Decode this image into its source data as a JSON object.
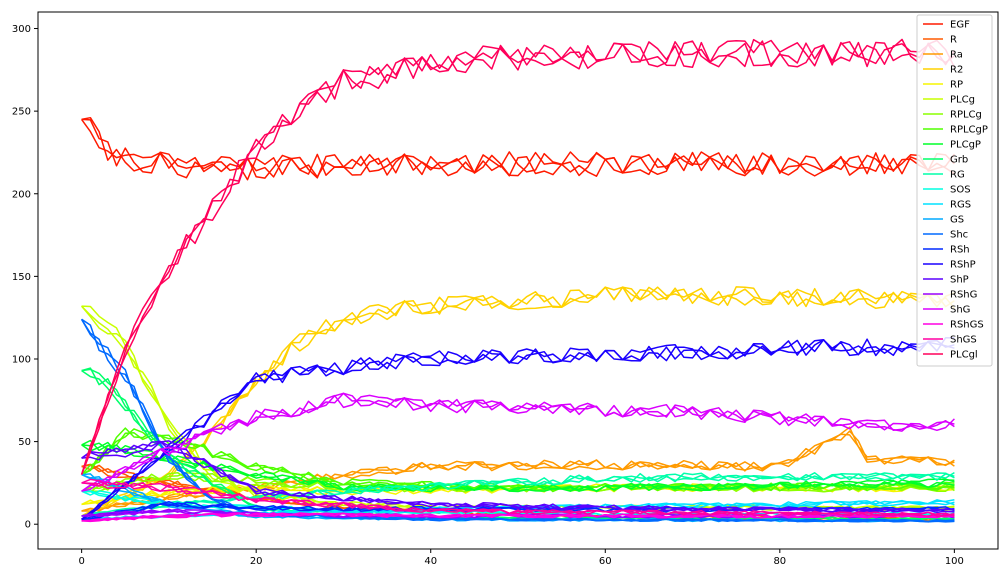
{
  "chart_data": {
    "type": "line",
    "title": "",
    "xlabel": "",
    "ylabel": "",
    "xlim": [
      -5,
      105
    ],
    "ylim": [
      -15,
      310
    ],
    "x_ticks": [
      0,
      20,
      40,
      60,
      80,
      100
    ],
    "y_ticks": [
      0,
      50,
      100,
      150,
      200,
      250,
      300
    ],
    "x_tick_labels": [
      "0",
      "20",
      "40",
      "60",
      "80",
      "100"
    ],
    "y_tick_labels": [
      "0",
      "50",
      "100",
      "150",
      "200",
      "250",
      "300"
    ],
    "grid": false,
    "legend_position": "top-right",
    "noise": 0.5,
    "series": [
      {
        "name": "EGF",
        "color": "#ff1a00",
        "x": [
          0,
          3,
          6,
          10,
          15,
          20,
          30,
          40,
          60,
          80,
          100
        ],
        "y": [
          245,
          225,
          221,
          217,
          215,
          216,
          217,
          218,
          218,
          218,
          218
        ]
      },
      {
        "name": "R",
        "color": "#ff5a00",
        "x": [
          0,
          5,
          10,
          20,
          30,
          50,
          70,
          100
        ],
        "y": [
          35,
          30,
          25,
          16,
          10,
          6,
          4,
          3
        ]
      },
      {
        "name": "Ra",
        "color": "#ff9a00",
        "x": [
          0,
          5,
          10,
          20,
          30,
          40,
          60,
          80,
          88,
          90,
          100
        ],
        "y": [
          8,
          12,
          16,
          22,
          30,
          35,
          36,
          35,
          55,
          40,
          37
        ]
      },
      {
        "name": "R2",
        "color": "#ffd200",
        "x": [
          0,
          10,
          15,
          20,
          25,
          30,
          40,
          60,
          80,
          100
        ],
        "y": [
          5,
          30,
          55,
          85,
          110,
          125,
          132,
          138,
          138,
          135
        ]
      },
      {
        "name": "RP",
        "color": "#f5f500",
        "x": [
          0,
          10,
          20,
          30,
          60,
          100
        ],
        "y": [
          12,
          20,
          22,
          20,
          22,
          22
        ]
      },
      {
        "name": "PLCg",
        "color": "#c8ff00",
        "x": [
          0,
          5,
          10,
          15,
          20,
          30,
          50,
          100
        ],
        "y": [
          132,
          110,
          60,
          30,
          18,
          12,
          10,
          10
        ]
      },
      {
        "name": "RPLCg",
        "color": "#8cff00",
        "x": [
          0,
          10,
          20,
          30,
          60,
          100
        ],
        "y": [
          20,
          30,
          26,
          22,
          22,
          22
        ]
      },
      {
        "name": "RPLCgP",
        "color": "#50ff00",
        "x": [
          0,
          5,
          10,
          20,
          30,
          50,
          100
        ],
        "y": [
          30,
          55,
          52,
          35,
          25,
          22,
          23
        ]
      },
      {
        "name": "PLCgP",
        "color": "#00ff2a",
        "x": [
          0,
          5,
          10,
          20,
          30,
          60,
          100
        ],
        "y": [
          48,
          45,
          40,
          30,
          22,
          22,
          25
        ]
      },
      {
        "name": "Grb",
        "color": "#00ff6a",
        "x": [
          0,
          3,
          10,
          20,
          40,
          100
        ],
        "y": [
          93,
          85,
          40,
          10,
          4,
          3
        ]
      },
      {
        "name": "RG",
        "color": "#00ffaa",
        "x": [
          0,
          10,
          30,
          60,
          100
        ],
        "y": [
          5,
          12,
          20,
          28,
          29
        ]
      },
      {
        "name": "SOS",
        "color": "#00ffe2",
        "x": [
          0,
          10,
          30,
          60,
          100
        ],
        "y": [
          20,
          12,
          8,
          6,
          6
        ]
      },
      {
        "name": "RGS",
        "color": "#00e2ff",
        "x": [
          0,
          10,
          30,
          60,
          100
        ],
        "y": [
          3,
          5,
          8,
          11,
          13
        ]
      },
      {
        "name": "GS",
        "color": "#00aaff",
        "x": [
          0,
          10,
          20,
          40,
          100
        ],
        "y": [
          30,
          12,
          5,
          3,
          2
        ]
      },
      {
        "name": "Shc",
        "color": "#006aff",
        "x": [
          0,
          5,
          10,
          15,
          20,
          40,
          100
        ],
        "y": [
          124,
          90,
          40,
          15,
          6,
          3,
          2
        ]
      },
      {
        "name": "RSh",
        "color": "#002aff",
        "x": [
          0,
          10,
          20,
          40,
          100
        ],
        "y": [
          3,
          12,
          10,
          9,
          9
        ]
      },
      {
        "name": "RShP",
        "color": "#1a00ff",
        "x": [
          0,
          10,
          20,
          30,
          40,
          60,
          80,
          100
        ],
        "y": [
          3,
          45,
          88,
          95,
          100,
          102,
          106,
          108
        ]
      },
      {
        "name": "ShP",
        "color": "#5a00ff",
        "x": [
          0,
          10,
          20,
          40,
          60,
          100
        ],
        "y": [
          40,
          48,
          20,
          12,
          10,
          8
        ]
      },
      {
        "name": "RShG",
        "color": "#9a00ff",
        "x": [
          0,
          10,
          20,
          40,
          100
        ],
        "y": [
          5,
          8,
          6,
          5,
          5
        ]
      },
      {
        "name": "ShG",
        "color": "#da00ff",
        "x": [
          0,
          10,
          20,
          30,
          50,
          70,
          90,
          100
        ],
        "y": [
          20,
          45,
          65,
          75,
          70,
          68,
          60,
          60
        ]
      },
      {
        "name": "RShGS",
        "color": "#ff00e2",
        "x": [
          0,
          10,
          20,
          40,
          100
        ],
        "y": [
          2,
          5,
          6,
          5,
          5
        ]
      },
      {
        "name": "ShGS",
        "color": "#ff00a2",
        "x": [
          0,
          10,
          20,
          40,
          100
        ],
        "y": [
          25,
          22,
          15,
          8,
          6
        ]
      },
      {
        "name": "PLCgl",
        "color": "#ff005a",
        "x": [
          0,
          5,
          10,
          15,
          20,
          25,
          30,
          40,
          50,
          60,
          80,
          100
        ],
        "y": [
          30,
          105,
          155,
          190,
          228,
          252,
          268,
          278,
          283,
          284,
          285,
          285
        ]
      }
    ]
  }
}
